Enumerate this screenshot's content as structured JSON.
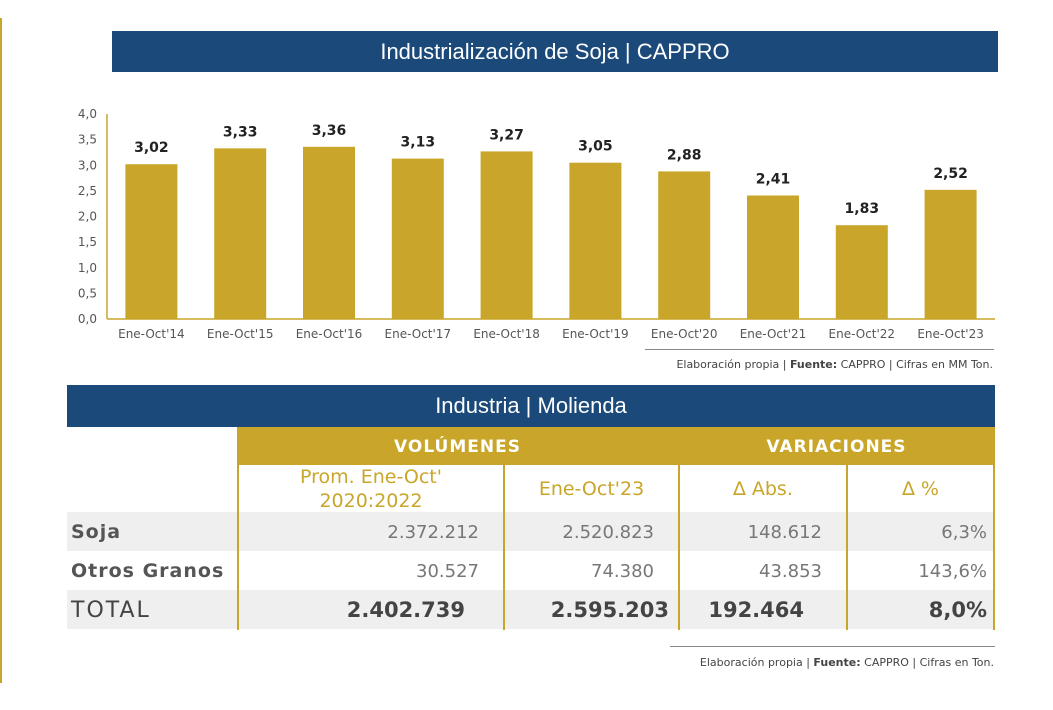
{
  "chart_section": {
    "title": "Industrialización de Soja | CAPPRO",
    "source_prefix": "Elaboración propia | ",
    "source_bold": "Fuente:",
    "source_suffix": " CAPPRO | Cifras en MM Ton."
  },
  "chart_data": {
    "type": "bar",
    "categories": [
      "Ene-Oct'14",
      "Ene-Oct'15",
      "Ene-Oct'16",
      "Ene-Oct'17",
      "Ene-Oct'18",
      "Ene-Oct'19",
      "Ene-Oct'20",
      "Ene-Oct'21",
      "Ene-Oct'22",
      "Ene-Oct'23"
    ],
    "values": [
      3.02,
      3.33,
      3.36,
      3.13,
      3.27,
      3.05,
      2.88,
      2.41,
      1.83,
      2.52
    ],
    "data_labels": [
      "3,02",
      "3,33",
      "3,36",
      "3,13",
      "3,27",
      "3,05",
      "2,88",
      "2,41",
      "1,83",
      "2,52"
    ],
    "yticks": [
      "0,0",
      "0,5",
      "1,0",
      "1,5",
      "2,0",
      "2,5",
      "3,0",
      "3,5",
      "4,0"
    ],
    "ylim": [
      0,
      4
    ],
    "title": "Industrialización de Soja | CAPPRO",
    "xlabel": "",
    "ylabel": "",
    "grid": false,
    "colors": {
      "bar": "#c9a62a",
      "axis": "#c9a62a"
    }
  },
  "table_section": {
    "title": "Industria | Molienda",
    "group_headers": {
      "volumes": "VOLÚMENES",
      "variations": "VARIACIONES"
    },
    "column_headers": {
      "avg_line1": "Prom. Ene-Oct'",
      "avg_line2": "2020:2022",
      "current": "Ene-Oct'23",
      "abs": "∆ Abs.",
      "pct": "∆ %"
    },
    "rows": [
      {
        "label": "Soja",
        "avg": "2.372.212",
        "current": "2.520.823",
        "abs": "148.612",
        "pct": "6,3%"
      },
      {
        "label": "Otros Granos",
        "avg": "30.527",
        "current": "74.380",
        "abs": "43.853",
        "pct": "143,6%"
      },
      {
        "label": "TOTAL",
        "avg": "2.402.739",
        "current": "2.595.203",
        "abs": "192.464",
        "pct": "8,0%"
      }
    ],
    "source_prefix": "Elaboración propia | ",
    "source_bold": "Fuente:",
    "source_suffix": " CAPPRO | Cifras en Ton."
  },
  "colors": {
    "navy": "#1b4a7a",
    "gold": "#c9a62a",
    "row_shade": "#efefef"
  }
}
